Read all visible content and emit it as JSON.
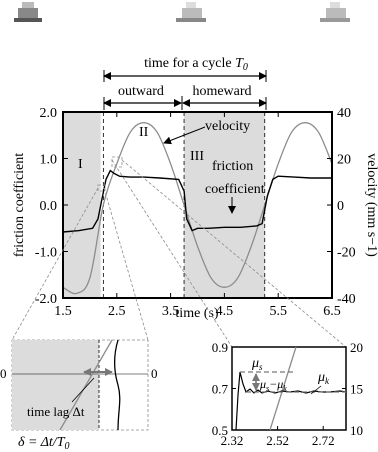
{
  "chart_data": [
    {
      "type": "line",
      "xlabel": "time (s)",
      "ylabel_left": "friction coefficient",
      "ylabel_right": "velocity (mm s−1)",
      "xlim": [
        1.5,
        6.5
      ],
      "ylim_left": [
        -2.0,
        2.0
      ],
      "ylim_right": [
        -40,
        40
      ],
      "x_ticks": [
        "1.5",
        "2.5",
        "3.5",
        "4.5",
        "5.5",
        "6.5"
      ],
      "y_ticks_left": [
        "2.0",
        "1.0",
        "0.0",
        "-1.0",
        "-2.0"
      ],
      "y_ticks_right": [
        "40",
        "20",
        "0",
        "-20",
        "-40"
      ],
      "regions": [
        {
          "label": "I",
          "x_start": 1.5,
          "x_end": 2.2
        },
        {
          "label": "III",
          "x_start": 3.75,
          "x_end": 5.25
        }
      ],
      "region_II_label": "II",
      "cycle_annotation": {
        "text": "time for a cycle",
        "symbol": "T",
        "subscript": "0",
        "x_start": 2.25,
        "x_end": 5.25
      },
      "phase_labels": [
        {
          "text": "outward",
          "x_start": 2.25,
          "x_end": 3.75
        },
        {
          "text": "homeward",
          "x_start": 3.75,
          "x_end": 5.25
        }
      ],
      "series": [
        {
          "name": "velocity",
          "axis": "right",
          "x": [
            1.5,
            1.75,
            2.0,
            2.25,
            2.5,
            2.75,
            3.0,
            3.25,
            3.5,
            3.75,
            4.0,
            4.25,
            4.5,
            4.75,
            5.0,
            5.25,
            5.5,
            5.75,
            6.0,
            6.25,
            6.5
          ],
          "values": [
            -35.4,
            -38.0,
            -31.3,
            0,
            17.7,
            31.3,
            35.4,
            31.3,
            17.7,
            0,
            -17.7,
            -31.3,
            -35.4,
            -31.3,
            -17.7,
            0,
            17.7,
            31.3,
            35.4,
            31.3,
            17.7
          ]
        },
        {
          "name": "friction coefficient",
          "axis": "left",
          "x": [
            1.5,
            1.8,
            2.05,
            2.15,
            2.22,
            2.3,
            2.38,
            2.45,
            2.55,
            2.75,
            3.0,
            3.3,
            3.65,
            3.75,
            3.8,
            3.9,
            4.0,
            4.2,
            4.5,
            4.8,
            5.1,
            5.2,
            5.3,
            5.4,
            5.5,
            5.8,
            6.1,
            6.5
          ],
          "values": [
            -0.58,
            -0.55,
            -0.5,
            -0.3,
            0.1,
            0.55,
            0.74,
            0.68,
            0.62,
            0.6,
            0.6,
            0.58,
            0.55,
            0.3,
            -0.3,
            -0.55,
            -0.5,
            -0.5,
            -0.48,
            -0.48,
            -0.45,
            -0.4,
            0.2,
            0.55,
            0.62,
            0.6,
            0.58,
            0.58
          ]
        }
      ],
      "annotations": [
        "velocity",
        "friction coefficient"
      ]
    },
    {
      "type": "line",
      "inset": "zoom of start of outward stroke",
      "x_ticks": [
        "2.32",
        "2.52",
        "2.72"
      ],
      "xlim": [
        2.32,
        2.82
      ],
      "ylim_left": [
        0.5,
        0.9
      ],
      "ylim_right": [
        10,
        20
      ],
      "y_ticks_left": [
        "0.9",
        "0.7",
        "0.5"
      ],
      "y_ticks_right": [
        "20",
        "15",
        "10"
      ],
      "labels": {
        "mu_s": "μ",
        "mu_s_sub": "s",
        "mu_k": "μ",
        "mu_k_sub": "k",
        "diff": "μ",
        "diff_sub1": "s",
        "diff_mid": "−μ",
        "diff_sub2": "k"
      },
      "levels": {
        "mu_s": 0.74,
        "mu_k": 0.62
      }
    },
    {
      "type": "line",
      "inset": "zoom of zero crossing",
      "zero_label_left": "0",
      "zero_label_right": "0",
      "time_lag_label": "time lag Δt",
      "delta_formula": "δ = Δt/T",
      "delta_sub": "0"
    }
  ]
}
